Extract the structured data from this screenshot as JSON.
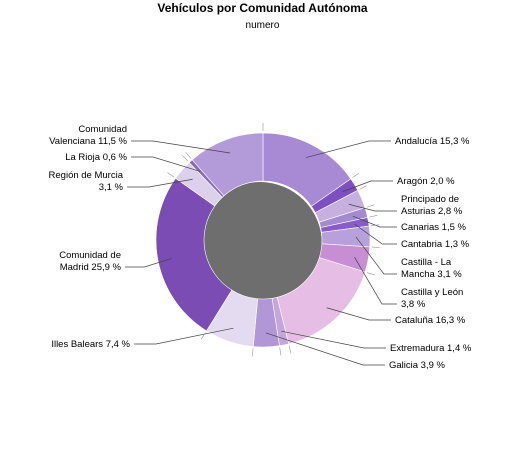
{
  "chart_data": {
    "type": "pie",
    "variant": "donut",
    "title": "Vehículos por Comunidad Autónoma",
    "subtitle": "numero",
    "start": "12 o'clock",
    "direction": "clockwise",
    "slices": [
      {
        "label": "Andalucía 15,3 %",
        "value": 15.3,
        "color": "#a88ad4"
      },
      {
        "label": "Aragón 2,0 %",
        "value": 2.0,
        "color": "#7d4fc0"
      },
      {
        "label": "Principado de Asturias 2,8 %",
        "value": 2.8,
        "color": "#c7b0e0"
      },
      {
        "label": "Canarias 1,5 %",
        "value": 1.5,
        "color": "#a48ad0"
      },
      {
        "label": "Cantabria 1,3 %",
        "value": 1.3,
        "color": "#8a5cc8"
      },
      {
        "label": "Castilla - La Mancha 3,1 %",
        "value": 3.1,
        "color": "#b8a0dc"
      },
      {
        "label": "Castilla y León 3,8 %",
        "value": 3.8,
        "color": "#c88ed4"
      },
      {
        "label": "Cataluña 16,3 %",
        "value": 16.3,
        "color": "#e6bde4"
      },
      {
        "label": "Extremadura 1,4 %",
        "value": 1.4,
        "color": "#c2a6dc"
      },
      {
        "label": "Galicia 3,9 %",
        "value": 3.9,
        "color": "#b197d6"
      },
      {
        "label": "Illes Balears 7,4 %",
        "value": 7.4,
        "color": "#e4dbf0"
      },
      {
        "label": "Comunidad de Madrid 25,9 %",
        "value": 25.9,
        "color": "#7a4cb4"
      },
      {
        "label": "Región de Murcia 3,1 %",
        "value": 3.1,
        "color": "#dcd0ec"
      },
      {
        "label": "La Rioja 0,6 %",
        "value": 0.6,
        "color": "#8a6ab8"
      },
      {
        "label": "Comunidad Valenciana 11,5 %",
        "value": 11.5,
        "color": "#b39ad8"
      }
    ]
  }
}
